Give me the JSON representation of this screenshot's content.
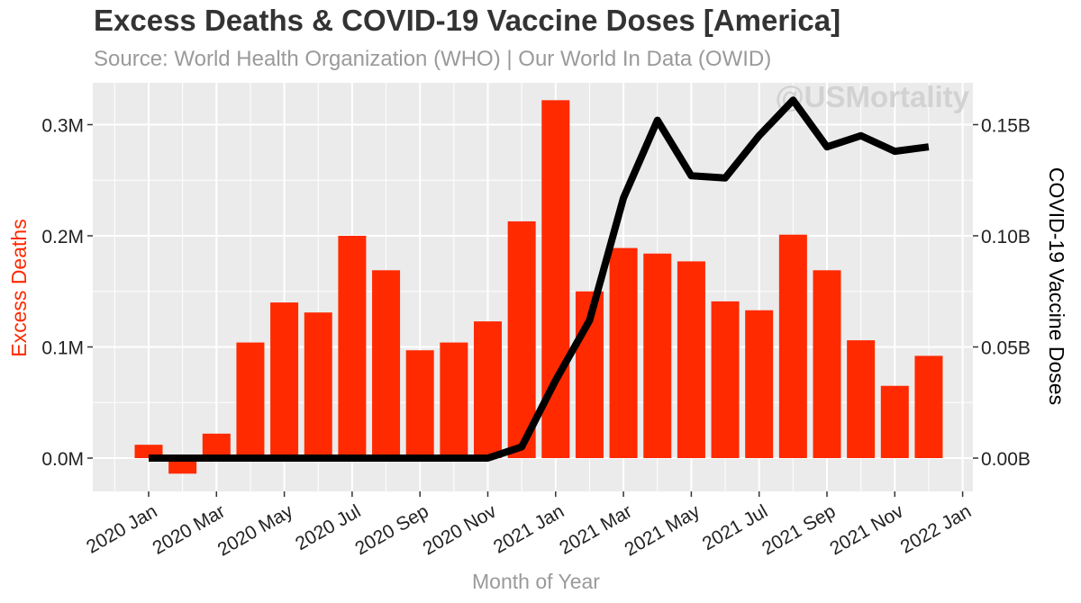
{
  "chart_data": {
    "type": "bar+line",
    "title": "Excess Deaths & COVID-19 Vaccine Doses [America]",
    "subtitle": "Source: World Health Organization (WHO) | Our World In Data (OWID)",
    "watermark": "@USMortality",
    "xlabel": "Month of Year",
    "ylabel_left": "Excess Deaths",
    "ylabel_right": "COVID-19 Vaccine Doses",
    "x_tick_labels": [
      "2020 Jan",
      "2020 Mar",
      "2020 May",
      "2020 Jul",
      "2020 Sep",
      "2020 Nov",
      "2021 Jan",
      "2021 Mar",
      "2021 May",
      "2021 Jul",
      "2021 Sep",
      "2021 Nov",
      "2022 Jan"
    ],
    "y_left_ticks": [
      "0.0M",
      "0.1M",
      "0.2M",
      "0.3M"
    ],
    "y_left_tick_values": [
      0,
      100000,
      200000,
      300000
    ],
    "y_right_ticks": [
      "0.00B",
      "0.05B",
      "0.10B",
      "0.15B"
    ],
    "y_right_tick_values": [
      0,
      50000000,
      100000000,
      150000000
    ],
    "ylim_left": [
      -30000,
      335000
    ],
    "categories": [
      "2020-01",
      "2020-02",
      "2020-03",
      "2020-04",
      "2020-05",
      "2020-06",
      "2020-07",
      "2020-08",
      "2020-09",
      "2020-10",
      "2020-11",
      "2020-12",
      "2021-01",
      "2021-02",
      "2021-03",
      "2021-04",
      "2021-05",
      "2021-06",
      "2021-07",
      "2021-08",
      "2021-09",
      "2021-10",
      "2021-11",
      "2021-12"
    ],
    "series": [
      {
        "name": "Excess Deaths",
        "kind": "bar",
        "axis": "left",
        "color": "#ff2a00",
        "values": [
          12000,
          -14000,
          22000,
          104000,
          140000,
          131000,
          200000,
          169000,
          97000,
          104000,
          123000,
          213000,
          322000,
          150000,
          189000,
          184000,
          177000,
          141000,
          133000,
          201000,
          169000,
          106000,
          65000,
          92000
        ]
      },
      {
        "name": "COVID-19 Vaccine Doses",
        "kind": "line",
        "axis": "right",
        "color": "#000000",
        "values": [
          0,
          0,
          0,
          0,
          0,
          0,
          0,
          0,
          0,
          0,
          0,
          5000000,
          35000000,
          62000000,
          117000000,
          152000000,
          127000000,
          126000000,
          145000000,
          161000000,
          140000000,
          145000000,
          138000000,
          140000000
        ]
      }
    ],
    "colors": {
      "panel": "#ebebeb",
      "grid": "#ffffff",
      "title": "#333333",
      "subtitle": "#9a9a9a",
      "left_axis_label": "#ff2a00",
      "right_axis_label": "#000000",
      "xlabel": "#9a9a9a",
      "watermark": "#d2d2d2"
    }
  }
}
